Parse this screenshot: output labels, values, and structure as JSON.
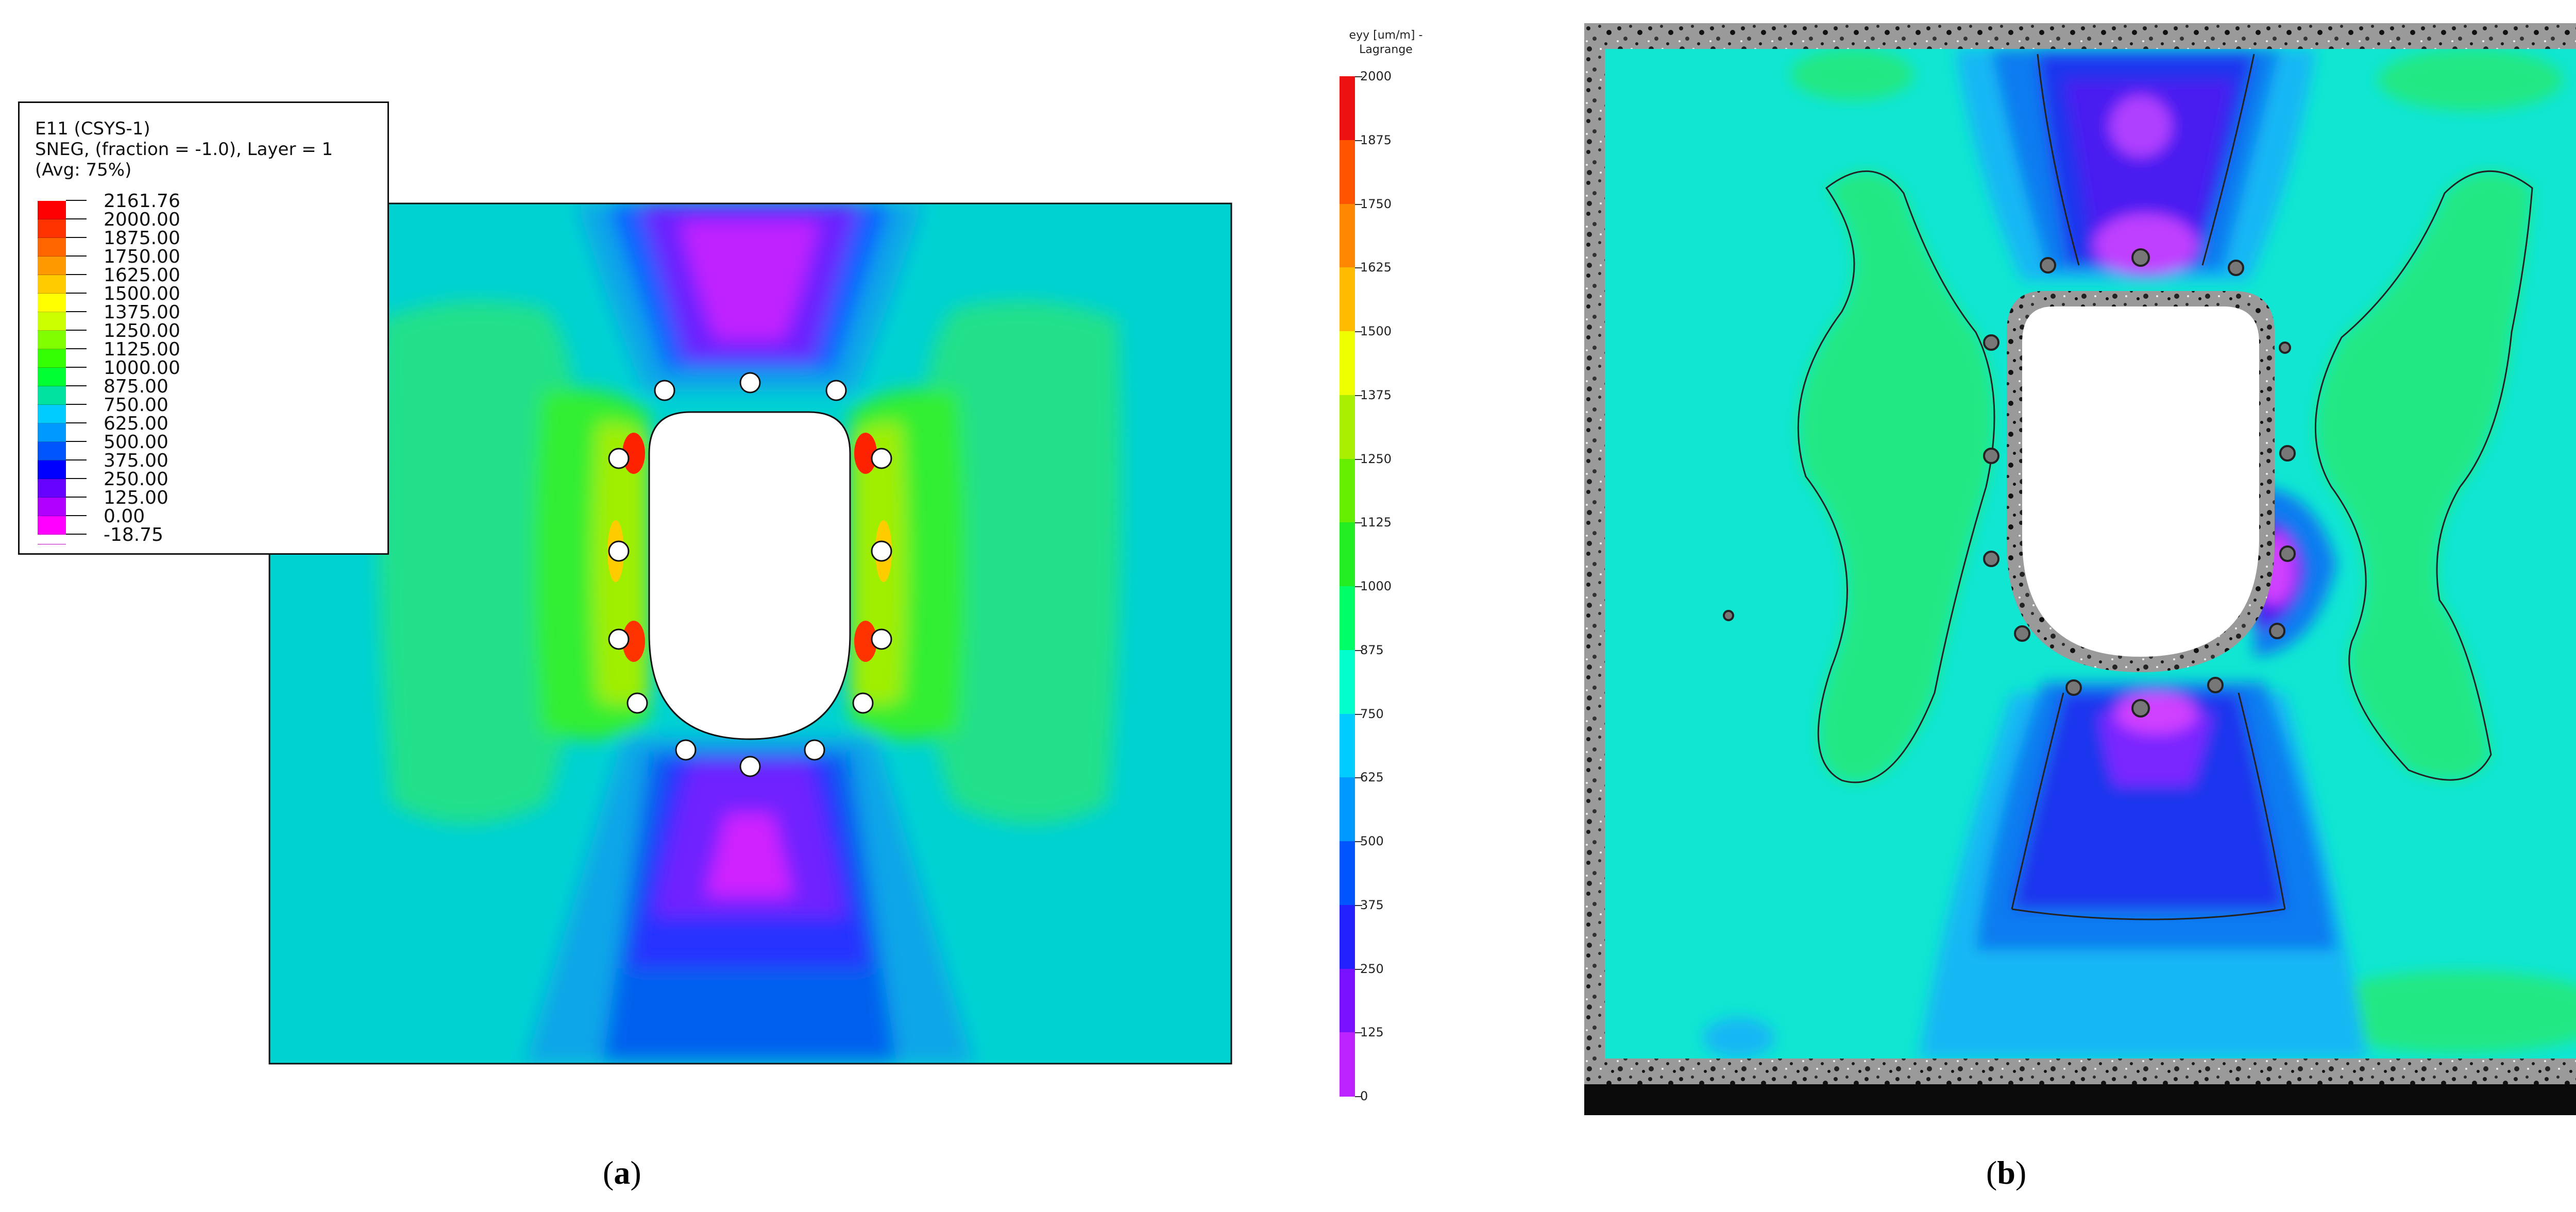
{
  "panel_a": {
    "legend": {
      "title_lines": [
        "E11 (CSYS-1)",
        "SNEG, (fraction = -1.0), Layer = 1",
        "(Avg: 75%)"
      ],
      "levels": [
        {
          "label": "2161.76",
          "color": "#ff0000"
        },
        {
          "label": "2000.00",
          "color": "#ff3300"
        },
        {
          "label": "1875.00",
          "color": "#ff6600"
        },
        {
          "label": "1750.00",
          "color": "#ff9900"
        },
        {
          "label": "1625.00",
          "color": "#ffcc00"
        },
        {
          "label": "1500.00",
          "color": "#ffff00"
        },
        {
          "label": "1375.00",
          "color": "#ccff00"
        },
        {
          "label": "1250.00",
          "color": "#80ff00"
        },
        {
          "label": "1125.00",
          "color": "#33ff00"
        },
        {
          "label": "1000.00",
          "color": "#00ff33"
        },
        {
          "label": "875.00",
          "color": "#00e3a0"
        },
        {
          "label": "750.00",
          "color": "#00ccff"
        },
        {
          "label": "625.00",
          "color": "#0099ff"
        },
        {
          "label": "500.00",
          "color": "#0055ff"
        },
        {
          "label": "375.00",
          "color": "#0000ff"
        },
        {
          "label": "250.00",
          "color": "#6600ff"
        },
        {
          "label": "125.00",
          "color": "#b000ff"
        },
        {
          "label": "0.00",
          "color": "#ff00ff"
        },
        {
          "label": "-18.75",
          "color": "#ff00ff"
        }
      ]
    }
  },
  "panel_b": {
    "colorbar": {
      "title": "eyy [um/m] - Lagrange",
      "ticks": [
        "2000",
        "1875",
        "1750",
        "1625",
        "1500",
        "1375",
        "1250",
        "1125",
        "1000",
        "875",
        "750",
        "625",
        "500",
        "375",
        "250",
        "125",
        "0"
      ],
      "colors": [
        "#ee1111",
        "#ff5500",
        "#ff8800",
        "#ffbb00",
        "#eeff00",
        "#aaee00",
        "#66ee00",
        "#22ee22",
        "#00ff66",
        "#00ffcc",
        "#00ccff",
        "#0099ff",
        "#0055ff",
        "#2222ff",
        "#7711ff",
        "#bb22ff"
      ]
    }
  },
  "captions": {
    "a": {
      "open": "(",
      "letter": "a",
      "close": ")"
    },
    "b": {
      "open": "(",
      "letter": "b",
      "close": ")"
    }
  }
}
